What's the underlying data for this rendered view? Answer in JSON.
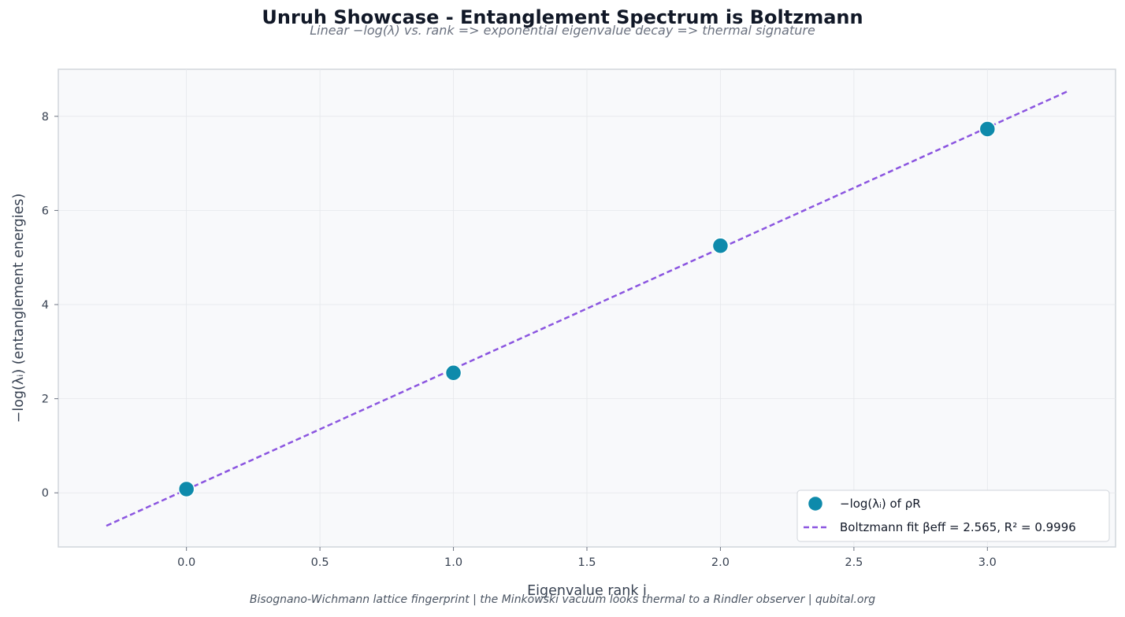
{
  "header": {
    "title": "Unruh Showcase - Entanglement Spectrum is Boltzmann",
    "subtitle": "Linear −log(λ) vs. rank => exponential eigenvalue decay => thermal signature"
  },
  "footer": {
    "text": "Bisognano-Wichmann lattice fingerprint  |  the Minkowski vacuum looks thermal to a Rindler observer  |  qubital.org"
  },
  "chart_data": {
    "type": "scatter",
    "title": "Unruh Showcase - Entanglement Spectrum is Boltzmann",
    "subtitle": "Linear −log(λ) vs. rank => exponential eigenvalue decay => thermal signature",
    "xlabel": "Eigenvalue rank  i",
    "ylabel": "−log(λᵢ)   (entanglement energies)",
    "xlim": [
      -0.48,
      3.48
    ],
    "ylim": [
      -1.15,
      9.0
    ],
    "xticks": [
      0.0,
      0.5,
      1.0,
      1.5,
      2.0,
      2.5,
      3.0
    ],
    "xtick_labels": [
      "0.0",
      "0.5",
      "1.0",
      "1.5",
      "2.0",
      "2.5",
      "3.0"
    ],
    "yticks": [
      0,
      2,
      4,
      6,
      8
    ],
    "ytick_labels": [
      "0",
      "2",
      "4",
      "6",
      "8"
    ],
    "grid": true,
    "legend_position": "lower-right",
    "series": [
      {
        "name": "−log(λᵢ) of ρR",
        "kind": "scatter",
        "color": "#0e8aab",
        "x": [
          0,
          1,
          2,
          3
        ],
        "y": [
          0.08,
          2.55,
          5.25,
          7.73
        ]
      },
      {
        "name": "Boltzmann fit  βeff = 2.565, R² = 0.9996",
        "kind": "line",
        "style": "dashed",
        "color": "#8b55e0",
        "x": [
          -0.3,
          3.3
        ],
        "y": [
          -0.7,
          8.53
        ]
      }
    ]
  }
}
